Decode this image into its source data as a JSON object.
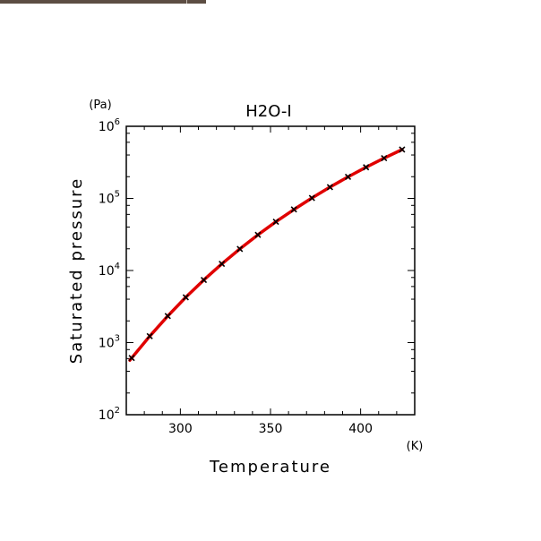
{
  "window": {
    "strip_color": "#5c4d43"
  },
  "chart_data": {
    "type": "line",
    "title": "H2O-I",
    "xlabel": "Temperature",
    "ylabel": "Saturated pressure",
    "x_unit": "(K)",
    "y_unit": "(Pa)",
    "xlim": [
      270,
      430
    ],
    "ylim": [
      100,
      1000000
    ],
    "yscale": "log",
    "grid": false,
    "x_ticks": [
      300,
      350,
      400
    ],
    "x_tick_labels": [
      "300",
      "350",
      "400"
    ],
    "y_ticks": [
      100,
      1000,
      10000,
      100000,
      1000000
    ],
    "y_tick_bases": [
      "10",
      "10",
      "10",
      "10",
      "10"
    ],
    "y_tick_exponents": [
      "2",
      "3",
      "4",
      "5",
      "6"
    ],
    "line_color": "#e00000",
    "marker_color": "#000000",
    "marker": "x",
    "curve": {
      "x": [
        272,
        273,
        283,
        293,
        303,
        313,
        323,
        333,
        343,
        353,
        363,
        373,
        383,
        393,
        403,
        413,
        423
      ],
      "y": [
        570,
        611,
        1230,
        2340,
        4250,
        7380,
        12350,
        19930,
        31200,
        47400,
        70200,
        101325,
        143400,
        198700,
        270200,
        361500,
        476000
      ]
    },
    "points": {
      "x": [
        273,
        283,
        293,
        303,
        313,
        323,
        333,
        343,
        353,
        363,
        373,
        383,
        393,
        403,
        413,
        423
      ],
      "y": [
        611,
        1230,
        2340,
        4250,
        7380,
        12350,
        19930,
        31200,
        47400,
        70200,
        101325,
        143400,
        198700,
        270200,
        361500,
        476000
      ]
    }
  }
}
